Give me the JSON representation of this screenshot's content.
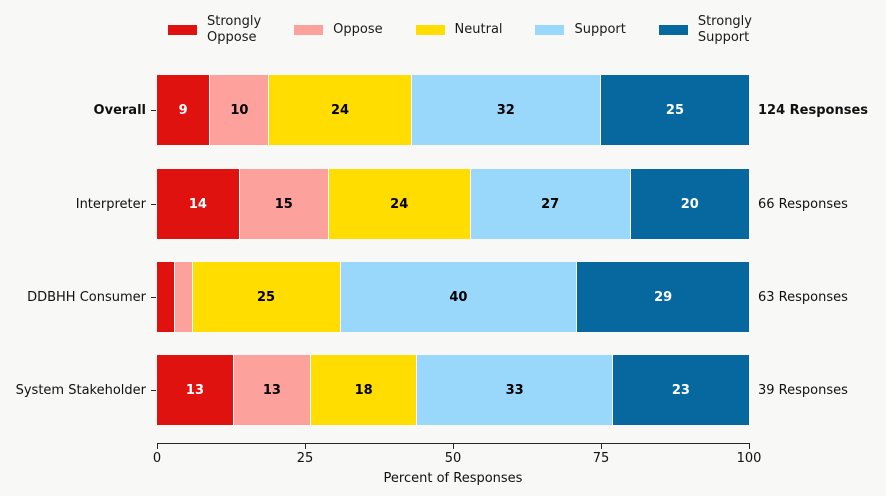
{
  "background": "#f8f8f7",
  "legend": {
    "items": [
      {
        "name": "Strongly Oppose",
        "lines": [
          "Strongly",
          "Oppose"
        ],
        "color": "#e01210"
      },
      {
        "name": "Oppose",
        "lines": [
          "Oppose"
        ],
        "color": "#fca19b"
      },
      {
        "name": "Neutral",
        "lines": [
          "Neutral"
        ],
        "color": "#ffdd00"
      },
      {
        "name": "Support",
        "lines": [
          "Support"
        ],
        "color": "#99d7fb"
      },
      {
        "name": "Strongly Support",
        "lines": [
          "Strongly",
          "Support"
        ],
        "color": "#06689e"
      }
    ]
  },
  "chart_data": {
    "type": "bar",
    "orientation": "horizontal",
    "stacked": true,
    "title": "",
    "xlabel": "Percent of Responses",
    "ylabel": "",
    "xlim": [
      0,
      100
    ],
    "x_ticks": [
      "0",
      "25",
      "50",
      "75",
      "100"
    ],
    "x_tick_values": [
      0,
      25,
      50,
      75,
      100
    ],
    "legend_position": "top",
    "grid": false,
    "series_names": [
      "Strongly Oppose",
      "Oppose",
      "Neutral",
      "Support",
      "Strongly Support"
    ],
    "series_colors": [
      "#e01210",
      "#fca19b",
      "#ffdd00",
      "#99d7fb",
      "#06689e"
    ],
    "series_text_colors": [
      "#ffffff",
      "#000000",
      "#000000",
      "#000000",
      "#ffffff"
    ],
    "categories": [
      "Overall",
      "Interpreter",
      "DDBHH Consumer",
      "System Stakeholder"
    ],
    "rows": [
      {
        "category": "Overall",
        "responses": "124 Responses",
        "segments": [
          {
            "value": 9,
            "label": "9"
          },
          {
            "value": 10,
            "label": "10"
          },
          {
            "value": 24,
            "label": "24"
          },
          {
            "value": 32,
            "label": "32"
          },
          {
            "value": 25,
            "label": "25"
          }
        ]
      },
      {
        "category": "Interpreter",
        "responses": "66 Responses",
        "segments": [
          {
            "value": 14,
            "label": "14"
          },
          {
            "value": 15,
            "label": "15"
          },
          {
            "value": 24,
            "label": "24"
          },
          {
            "value": 27,
            "label": "27"
          },
          {
            "value": 20,
            "label": "20"
          }
        ]
      },
      {
        "category": "DDBHH Consumer",
        "responses": "63 Responses",
        "segments": [
          {
            "value": 3,
            "label": ""
          },
          {
            "value": 3,
            "label": ""
          },
          {
            "value": 25,
            "label": "25"
          },
          {
            "value": 40,
            "label": "40"
          },
          {
            "value": 29,
            "label": "29"
          }
        ]
      },
      {
        "category": "System Stakeholder",
        "responses": "39 Responses",
        "segments": [
          {
            "value": 13,
            "label": "13"
          },
          {
            "value": 13,
            "label": "13"
          },
          {
            "value": 18,
            "label": "18"
          },
          {
            "value": 33,
            "label": "33"
          },
          {
            "value": 23,
            "label": "23"
          }
        ]
      }
    ]
  }
}
